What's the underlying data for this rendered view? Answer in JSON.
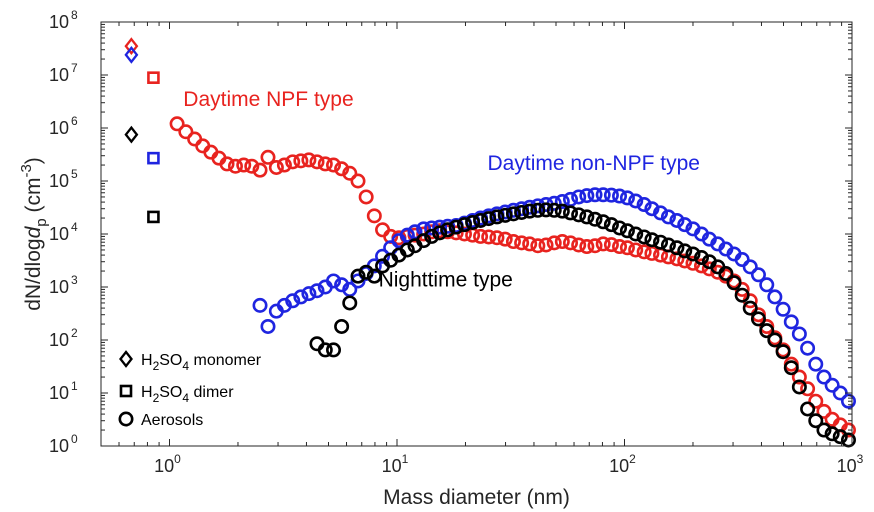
{
  "chart_data": {
    "type": "scatter",
    "xscale": "log",
    "yscale": "log",
    "xlim": [
      0.5,
      1000
    ],
    "ylim": [
      1,
      100000000
    ],
    "xlabel": "Mass diameter (nm)",
    "ylabel": {
      "pre": "dN/dlog",
      "italic": "d",
      "sub": "p",
      "unit_pre": " (cm",
      "unit_sup": "-3",
      "unit_post": ")"
    },
    "x_ticks": [
      {
        "value": 1,
        "base": "10",
        "exp": "0"
      },
      {
        "value": 10,
        "base": "10",
        "exp": "1"
      },
      {
        "value": 100,
        "base": "10",
        "exp": "2"
      },
      {
        "value": 1000,
        "base": "10",
        "exp": "3"
      }
    ],
    "y_ticks": [
      {
        "value": 1,
        "base": "10",
        "exp": "0"
      },
      {
        "value": 10,
        "base": "10",
        "exp": "1"
      },
      {
        "value": 100,
        "base": "10",
        "exp": "2"
      },
      {
        "value": 1000,
        "base": "10",
        "exp": "3"
      },
      {
        "value": 10000,
        "base": "10",
        "exp": "4"
      },
      {
        "value": 100000,
        "base": "10",
        "exp": "5"
      },
      {
        "value": 1000000,
        "base": "10",
        "exp": "6"
      },
      {
        "value": 10000000,
        "base": "10",
        "exp": "7"
      },
      {
        "value": 100000000,
        "base": "10",
        "exp": "8"
      }
    ],
    "grid": false,
    "annotations": [
      {
        "text": "Daytime NPF type",
        "color": "#e8231f",
        "x": 1.15,
        "y": 2600000
      },
      {
        "text": "Daytime non-NPF type",
        "color": "#1f25e0",
        "x": 25,
        "y": 160000
      },
      {
        "text": "Nighttime type",
        "color": "#000000",
        "x": 8.3,
        "y": 1030
      }
    ],
    "legend": {
      "position": "bottom-left",
      "entries": [
        {
          "marker": "diamond",
          "pre": "H",
          "sub1": "2",
          "mid": "SO",
          "sub2": "4",
          "post": " monomer"
        },
        {
          "marker": "square",
          "pre": "H",
          "sub1": "2",
          "mid": "SO",
          "sub2": "4",
          "post": " dimer"
        },
        {
          "marker": "circle",
          "pre": "Aerosols",
          "sub1": "",
          "mid": "",
          "sub2": "",
          "post": ""
        }
      ]
    },
    "series": [
      {
        "group": "monomer",
        "marker": "diamond",
        "color": "#e8231f",
        "points": [
          [
            0.68,
            35000000
          ]
        ]
      },
      {
        "group": "monomer",
        "marker": "diamond",
        "color": "#1f25e0",
        "points": [
          [
            0.68,
            24000000
          ]
        ]
      },
      {
        "group": "monomer",
        "marker": "diamond",
        "color": "#000000",
        "points": [
          [
            0.68,
            750000
          ]
        ]
      },
      {
        "group": "dimer",
        "marker": "square",
        "color": "#e8231f",
        "points": [
          [
            0.85,
            8900000
          ]
        ]
      },
      {
        "group": "dimer",
        "marker": "square",
        "color": "#1f25e0",
        "points": [
          [
            0.85,
            270000
          ]
        ]
      },
      {
        "group": "dimer",
        "marker": "square",
        "color": "#000000",
        "points": [
          [
            0.85,
            21000
          ]
        ]
      },
      {
        "group": "aerosol",
        "marker": "circle",
        "color": "#e8231f",
        "points": [
          [
            1.08,
            1200000
          ],
          [
            1.18,
            850000
          ],
          [
            1.29,
            620000
          ],
          [
            1.4,
            460000
          ],
          [
            1.52,
            350000
          ],
          [
            1.65,
            270000
          ],
          [
            1.79,
            210000
          ],
          [
            1.95,
            190000
          ],
          [
            2.12,
            200000
          ],
          [
            2.3,
            190000
          ],
          [
            2.5,
            160000
          ],
          [
            2.71,
            280000
          ],
          [
            2.95,
            180000
          ],
          [
            3.2,
            200000
          ],
          [
            3.48,
            230000
          ],
          [
            3.78,
            240000
          ],
          [
            4.1,
            250000
          ],
          [
            4.45,
            230000
          ],
          [
            4.84,
            210000
          ],
          [
            5.26,
            200000
          ],
          [
            5.71,
            170000
          ],
          [
            6.2,
            140000
          ],
          [
            6.74,
            100000
          ],
          [
            7.32,
            50000
          ],
          [
            7.95,
            22000
          ],
          [
            8.64,
            12000
          ],
          [
            9.38,
            9000
          ],
          [
            10.2,
            8500
          ],
          [
            11.1,
            9000
          ],
          [
            12.0,
            9500
          ],
          [
            13.1,
            10000
          ],
          [
            14.2,
            11000
          ],
          [
            15.4,
            11500
          ],
          [
            16.7,
            11000
          ],
          [
            18.2,
            10500
          ],
          [
            19.8,
            10000
          ],
          [
            21.5,
            9500
          ],
          [
            23.3,
            9000
          ],
          [
            25.3,
            8800
          ],
          [
            27.5,
            8500
          ],
          [
            29.9,
            8000
          ],
          [
            32.5,
            7200
          ],
          [
            35.3,
            6800
          ],
          [
            38.3,
            6500
          ],
          [
            41.6,
            6000
          ],
          [
            45.2,
            6200
          ],
          [
            49.1,
            6800
          ],
          [
            53.3,
            7200
          ],
          [
            57.9,
            6800
          ],
          [
            62.9,
            6200
          ],
          [
            68.3,
            5800
          ],
          [
            74.2,
            6000
          ],
          [
            80.6,
            6500
          ],
          [
            87.6,
            6300
          ],
          [
            95.1,
            5800
          ],
          [
            103,
            5500
          ],
          [
            112,
            5000
          ],
          [
            122,
            4600
          ],
          [
            132,
            4300
          ],
          [
            144,
            4000
          ],
          [
            156,
            3700
          ],
          [
            170,
            3400
          ],
          [
            184,
            3100
          ],
          [
            200,
            2800
          ],
          [
            218,
            2500
          ],
          [
            236,
            2200
          ],
          [
            257,
            1900
          ],
          [
            279,
            1600
          ],
          [
            303,
            1300
          ],
          [
            329,
            900
          ],
          [
            357,
            550
          ],
          [
            388,
            300
          ],
          [
            422,
            180
          ],
          [
            458,
            110
          ],
          [
            498,
            65
          ],
          [
            541,
            35
          ],
          [
            587,
            20
          ],
          [
            638,
            12
          ],
          [
            693,
            7
          ],
          [
            753,
            4.5
          ],
          [
            818,
            3.2
          ],
          [
            888,
            2.5
          ],
          [
            965,
            2
          ]
        ]
      },
      {
        "group": "aerosol",
        "marker": "circle",
        "color": "#1f25e0",
        "points": [
          [
            2.5,
            450
          ],
          [
            2.71,
            180
          ],
          [
            2.95,
            350
          ],
          [
            3.2,
            450
          ],
          [
            3.48,
            550
          ],
          [
            3.78,
            650
          ],
          [
            4.1,
            750
          ],
          [
            4.45,
            850
          ],
          [
            4.84,
            1000
          ],
          [
            5.26,
            1300
          ],
          [
            5.71,
            1100
          ],
          [
            6.2,
            900
          ],
          [
            6.74,
            1300
          ],
          [
            7.32,
            1800
          ],
          [
            7.95,
            2500
          ],
          [
            8.64,
            3800
          ],
          [
            9.38,
            5500
          ],
          [
            10.2,
            7500
          ],
          [
            11.1,
            9500
          ],
          [
            12.0,
            11000
          ],
          [
            13.1,
            12500
          ],
          [
            14.2,
            13000
          ],
          [
            15.4,
            13500
          ],
          [
            16.7,
            14000
          ],
          [
            18.2,
            14500
          ],
          [
            19.8,
            16000
          ],
          [
            21.5,
            18000
          ],
          [
            23.3,
            20000
          ],
          [
            25.3,
            22000
          ],
          [
            27.5,
            24000
          ],
          [
            29.9,
            26000
          ],
          [
            32.5,
            28000
          ],
          [
            35.3,
            30000
          ],
          [
            38.3,
            32000
          ],
          [
            41.6,
            34000
          ],
          [
            45.2,
            36000
          ],
          [
            49.1,
            38000
          ],
          [
            53.3,
            41000
          ],
          [
            57.9,
            45000
          ],
          [
            62.9,
            50000
          ],
          [
            68.3,
            53000
          ],
          [
            74.2,
            55000
          ],
          [
            80.6,
            55000
          ],
          [
            87.6,
            54000
          ],
          [
            95.1,
            52000
          ],
          [
            103,
            48000
          ],
          [
            112,
            42000
          ],
          [
            122,
            36000
          ],
          [
            132,
            30000
          ],
          [
            144,
            25000
          ],
          [
            156,
            21000
          ],
          [
            170,
            18000
          ],
          [
            184,
            15000
          ],
          [
            200,
            12500
          ],
          [
            218,
            10000
          ],
          [
            236,
            8000
          ],
          [
            257,
            6500
          ],
          [
            279,
            5200
          ],
          [
            303,
            4200
          ],
          [
            329,
            3300
          ],
          [
            357,
            2400
          ],
          [
            388,
            1700
          ],
          [
            422,
            1100
          ],
          [
            458,
            650
          ],
          [
            498,
            380
          ],
          [
            541,
            220
          ],
          [
            587,
            130
          ],
          [
            638,
            70
          ],
          [
            693,
            35
          ],
          [
            753,
            20
          ],
          [
            818,
            14
          ],
          [
            888,
            10
          ],
          [
            965,
            7
          ]
        ]
      },
      {
        "group": "aerosol",
        "marker": "circle",
        "color": "#000000",
        "points": [
          [
            4.45,
            85
          ],
          [
            4.84,
            65
          ],
          [
            5.26,
            65
          ],
          [
            5.71,
            180
          ],
          [
            6.2,
            500
          ],
          [
            6.74,
            1600
          ],
          [
            7.32,
            1900
          ],
          [
            7.95,
            1600
          ],
          [
            8.64,
            2500
          ],
          [
            9.38,
            3200
          ],
          [
            10.2,
            4000
          ],
          [
            11.1,
            5000
          ],
          [
            12.0,
            6000
          ],
          [
            13.1,
            7500
          ],
          [
            14.2,
            9000
          ],
          [
            15.4,
            10500
          ],
          [
            16.7,
            12000
          ],
          [
            18.2,
            13500
          ],
          [
            19.8,
            15000
          ],
          [
            21.5,
            16500
          ],
          [
            23.3,
            18000
          ],
          [
            25.3,
            19500
          ],
          [
            27.5,
            21000
          ],
          [
            29.9,
            22500
          ],
          [
            32.5,
            24000
          ],
          [
            35.3,
            25500
          ],
          [
            38.3,
            27000
          ],
          [
            41.6,
            28000
          ],
          [
            45.2,
            28500
          ],
          [
            49.1,
            28000
          ],
          [
            53.3,
            27000
          ],
          [
            57.9,
            25000
          ],
          [
            62.9,
            23000
          ],
          [
            68.3,
            21000
          ],
          [
            74.2,
            19000
          ],
          [
            80.6,
            17000
          ],
          [
            87.6,
            15000
          ],
          [
            95.1,
            13000
          ],
          [
            103,
            11500
          ],
          [
            112,
            10000
          ],
          [
            122,
            8800
          ],
          [
            132,
            7800
          ],
          [
            144,
            7000
          ],
          [
            156,
            6200
          ],
          [
            170,
            5500
          ],
          [
            184,
            4800
          ],
          [
            200,
            4200
          ],
          [
            218,
            3600
          ],
          [
            236,
            3000
          ],
          [
            257,
            2400
          ],
          [
            279,
            1800
          ],
          [
            303,
            1200
          ],
          [
            329,
            700
          ],
          [
            357,
            400
          ],
          [
            388,
            250
          ],
          [
            422,
            150
          ],
          [
            458,
            100
          ],
          [
            498,
            60
          ],
          [
            541,
            30
          ],
          [
            587,
            13
          ],
          [
            638,
            5
          ],
          [
            693,
            3
          ],
          [
            753,
            2
          ],
          [
            818,
            1.7
          ],
          [
            888,
            1.5
          ],
          [
            965,
            1.3
          ]
        ]
      }
    ]
  }
}
